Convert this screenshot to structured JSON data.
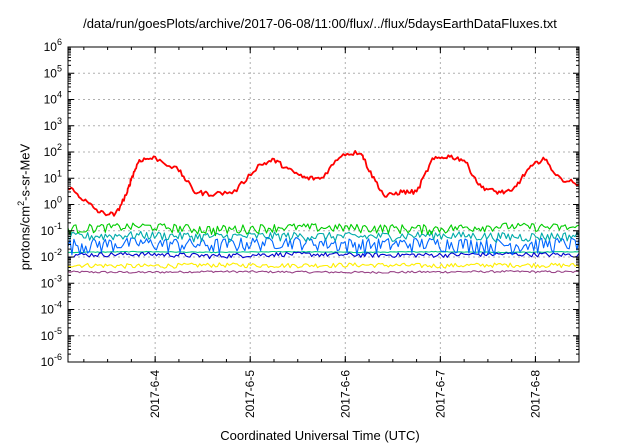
{
  "chart_data": {
    "type": "line",
    "title": "/data/run/goesPlots/archive/2017-06-08/11:00/flux/../flux/5daysEarthDataFluxes.txt",
    "xlabel": "Coordinated Universal Time (UTC)",
    "ylabel_main": "protons/cm",
    "ylabel_sup": "2",
    "ylabel_tail": "-s-sr-MeV",
    "y_scale": "log",
    "ylim": [
      1e-06,
      1000000.0
    ],
    "y_ticks": [
      {
        "value": 1000000.0,
        "base": "10",
        "exp": "6"
      },
      {
        "value": 100000.0,
        "base": "10",
        "exp": "5"
      },
      {
        "value": 10000.0,
        "base": "10",
        "exp": "4"
      },
      {
        "value": 1000.0,
        "base": "10",
        "exp": "3"
      },
      {
        "value": 100.0,
        "base": "10",
        "exp": "2"
      },
      {
        "value": 10.0,
        "base": "10",
        "exp": "1"
      },
      {
        "value": 1.0,
        "base": "10",
        "exp": "0"
      },
      {
        "value": 0.1,
        "base": "10",
        "exp": "-1"
      },
      {
        "value": 0.01,
        "base": "10",
        "exp": "-2"
      },
      {
        "value": 0.001,
        "base": "10",
        "exp": "-3"
      },
      {
        "value": 0.0001,
        "base": "10",
        "exp": "-4"
      },
      {
        "value": 1e-05,
        "base": "10",
        "exp": "-5"
      },
      {
        "value": 1e-06,
        "base": "10",
        "exp": "-6"
      }
    ],
    "x_domain": [
      "2017-06-03T02:00",
      "2017-06-08T11:00"
    ],
    "x_ticks": [
      "2017-6-4",
      "2017-6-5",
      "2017-6-6",
      "2017-6-7",
      "2017-6-8"
    ],
    "grid": true,
    "series": [
      {
        "color": "#ff0000",
        "x": [
          "2017-06-03T02:00",
          "2017-06-03T06:00",
          "2017-06-03T10:00",
          "2017-06-03T14:00",
          "2017-06-03T17:00",
          "2017-06-03T18:00",
          "2017-06-03T20:00",
          "2017-06-04T00:00",
          "2017-06-04T06:00",
          "2017-06-04T10:00",
          "2017-06-04T14:00",
          "2017-06-04T20:00",
          "2017-06-05T02:00",
          "2017-06-05T06:00",
          "2017-06-05T10:00",
          "2017-06-05T14:00",
          "2017-06-05T18:00",
          "2017-06-05T23:00",
          "2017-06-06T04:00",
          "2017-06-06T06:00",
          "2017-06-06T10:00",
          "2017-06-06T14:00",
          "2017-06-06T18:00",
          "2017-06-06T22:00",
          "2017-06-07T02:00",
          "2017-06-07T06:00",
          "2017-06-07T10:00",
          "2017-06-07T14:00",
          "2017-06-07T18:00",
          "2017-06-07T22:00",
          "2017-06-08T02:00",
          "2017-06-08T06:00",
          "2017-06-08T11:00"
        ],
        "values": [
          5,
          1.5,
          0.5,
          0.4,
          3,
          10,
          50,
          60,
          20,
          3,
          2.5,
          3,
          30,
          50,
          20,
          10,
          10,
          80,
          100,
          20,
          2,
          3,
          3,
          50,
          70,
          50,
          5,
          3,
          3,
          20,
          60,
          10,
          6
        ]
      },
      {
        "color": "#00cc00",
        "values": [
          0.12,
          0.15,
          0.11,
          0.14,
          0.13,
          0.12,
          0.15,
          0.13
        ],
        "noise": 0.1
      },
      {
        "color": "#00aaaa",
        "values": [
          0.06,
          0.07,
          0.06,
          0.065,
          0.06,
          0.07,
          0.06,
          0.065
        ],
        "noise": 0.05
      },
      {
        "color": "#0066ff",
        "values": [
          0.03,
          0.035,
          0.03,
          0.04,
          0.03,
          0.035,
          0.03,
          0.035
        ],
        "noise": 0.04
      },
      {
        "color": "#0000cc",
        "values": [
          0.012,
          0.013,
          0.011,
          0.013,
          0.012,
          0.012,
          0.013,
          0.012
        ],
        "noise": 0.005
      },
      {
        "color": "#00cc88",
        "values": [
          0.015,
          0.016,
          0.015,
          0.016,
          0.015,
          0.016,
          0.015,
          0.016
        ],
        "noise": 0.001
      },
      {
        "color": "#ffee00",
        "values": [
          0.005,
          0.0045,
          0.005,
          0.0048,
          0.005,
          0.0047,
          0.005,
          0.0048
        ],
        "noise": 0.002
      },
      {
        "color": "#994488",
        "values": [
          0.0027,
          0.0026,
          0.0028,
          0.0027,
          0.0026,
          0.0027,
          0.0028,
          0.0027
        ],
        "noise": 0.0005
      }
    ]
  }
}
